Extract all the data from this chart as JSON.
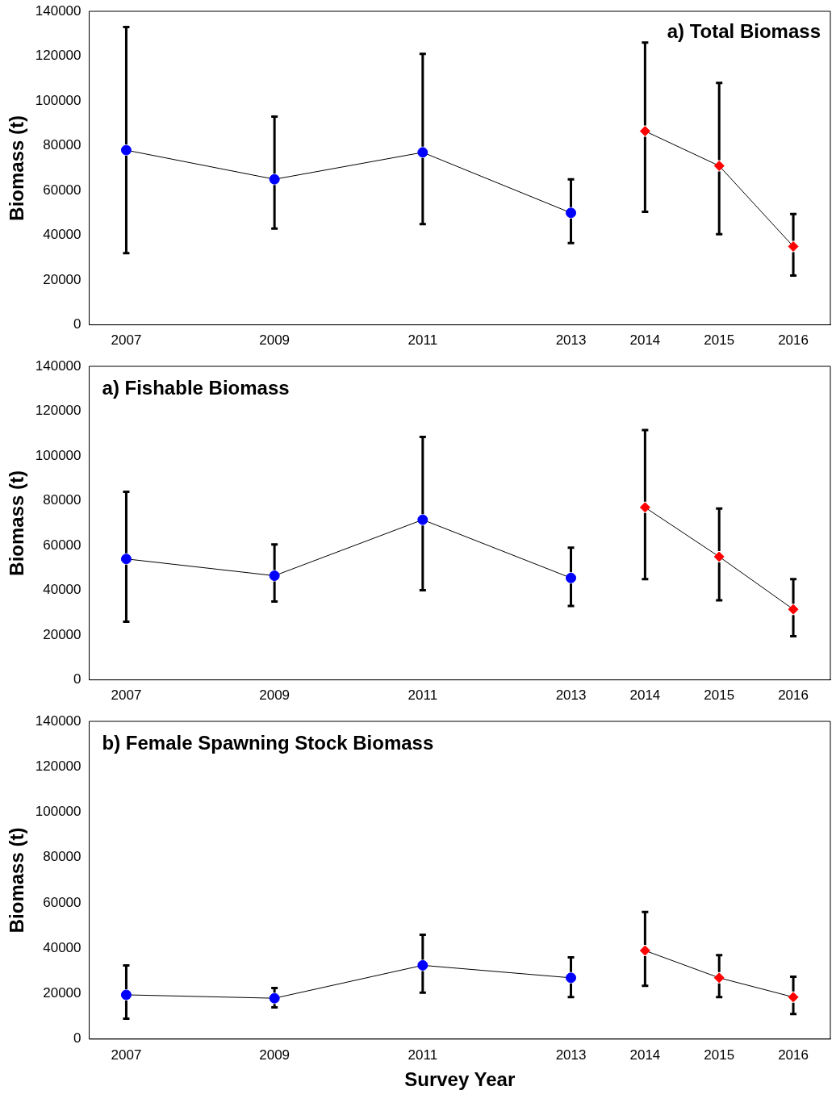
{
  "chart_data": [
    {
      "type": "line",
      "title": "a) Total Biomass",
      "ylabel": "Biomass (t)",
      "xlim": [
        2006.5,
        2016.5
      ],
      "xticks": [
        2007,
        2009,
        2011,
        2013,
        2014,
        2015,
        2016
      ],
      "ylim": [
        0,
        140000
      ],
      "yticks": [
        0,
        20000,
        40000,
        60000,
        80000,
        100000,
        120000,
        140000
      ],
      "grid": false,
      "legend": false,
      "series": [
        {
          "color": "#0000ff",
          "marker": "circle",
          "x": [
            2007,
            2009,
            2011,
            2013
          ],
          "values": [
            78000,
            65000,
            77000,
            50000
          ],
          "errors": [
            [
              32000,
              133000
            ],
            [
              43000,
              93000
            ],
            [
              45000,
              121000
            ],
            [
              36500,
              65000
            ]
          ]
        },
        {
          "color": "#ff0000",
          "marker": "diamond",
          "x": [
            2014,
            2015,
            2016
          ],
          "values": [
            86500,
            71000,
            35000
          ],
          "errors": [
            [
              50500,
              126000
            ],
            [
              40500,
              108000
            ],
            [
              22000,
              49500
            ]
          ]
        }
      ]
    },
    {
      "type": "line",
      "title": "a) Fishable Biomass",
      "ylabel": "Biomass (t)",
      "xlim": [
        2006.5,
        2016.5
      ],
      "xticks": [
        2007,
        2009,
        2011,
        2013,
        2014,
        2015,
        2016
      ],
      "ylim": [
        0,
        140000
      ],
      "yticks": [
        0,
        20000,
        40000,
        60000,
        80000,
        100000,
        120000,
        140000
      ],
      "grid": false,
      "legend": false,
      "series": [
        {
          "color": "#0000ff",
          "marker": "circle",
          "x": [
            2007,
            2009,
            2011,
            2013
          ],
          "values": [
            54000,
            46500,
            71500,
            45500
          ],
          "errors": [
            [
              26000,
              84000
            ],
            [
              35000,
              60500
            ],
            [
              40000,
              108500
            ],
            [
              33000,
              59000
            ]
          ]
        },
        {
          "color": "#ff0000",
          "marker": "diamond",
          "x": [
            2014,
            2015,
            2016
          ],
          "values": [
            77000,
            55000,
            31500
          ],
          "errors": [
            [
              45000,
              111500
            ],
            [
              35500,
              76500
            ],
            [
              19500,
              45000
            ]
          ]
        }
      ]
    },
    {
      "type": "line",
      "title": "b) Female Spawning Stock Biomass",
      "xlabel": "Survey Year",
      "ylabel": "Biomass (t)",
      "xlim": [
        2006.5,
        2016.5
      ],
      "xticks": [
        2007,
        2009,
        2011,
        2013,
        2014,
        2015,
        2016
      ],
      "ylim": [
        0,
        140000
      ],
      "yticks": [
        0,
        20000,
        40000,
        60000,
        80000,
        100000,
        120000,
        140000
      ],
      "grid": false,
      "legend": false,
      "series": [
        {
          "color": "#0000ff",
          "marker": "circle",
          "x": [
            2007,
            2009,
            2011,
            2013
          ],
          "values": [
            19500,
            18000,
            32500,
            27000
          ],
          "errors": [
            [
              9000,
              32500
            ],
            [
              14000,
              22500
            ],
            [
              20500,
              46000
            ],
            [
              18500,
              36000
            ]
          ]
        },
        {
          "color": "#ff0000",
          "marker": "diamond",
          "x": [
            2014,
            2015,
            2016
          ],
          "values": [
            39000,
            27000,
            18500
          ],
          "errors": [
            [
              23500,
              56000
            ],
            [
              18500,
              37000
            ],
            [
              11000,
              27500
            ]
          ]
        }
      ]
    }
  ]
}
